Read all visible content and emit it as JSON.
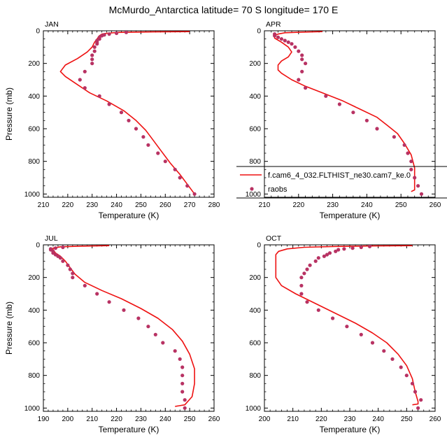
{
  "figure_title": "McMurdo_Antarctica  latitude= 70 S longitude= 170 E",
  "colors": {
    "model": "#ee1111",
    "obs": "#b83263"
  },
  "legend": {
    "model_label": "f.cam6_4_032.FLTHIST_ne30.cam7_ke.0",
    "obs_label": "raobs"
  },
  "chart_data": [
    {
      "type": "line",
      "title": "JAN",
      "xlabel": "Temperature (K)",
      "ylabel": "Pressure (mb)",
      "xlim": [
        210,
        280
      ],
      "ylim": [
        1020,
        0
      ],
      "y_inverted": true,
      "xticks": [
        210,
        220,
        230,
        240,
        250,
        260,
        270,
        280
      ],
      "yticks": [
        0,
        200,
        400,
        600,
        800,
        1000
      ],
      "series": [
        {
          "kind": "line",
          "points": [
            [
              270,
              5
            ],
            [
              255,
              7
            ],
            [
              241,
              10
            ],
            [
              236,
              15
            ],
            [
              234,
              20
            ],
            [
              233,
              30
            ],
            [
              232,
              50
            ],
            [
              231,
              70
            ],
            [
              230,
              100
            ],
            [
              228,
              130
            ],
            [
              224,
              170
            ],
            [
              219,
              210
            ],
            [
              217,
              250
            ],
            [
              219,
              280
            ],
            [
              223,
              320
            ],
            [
              229,
              380
            ],
            [
              236,
              430
            ],
            [
              243,
              490
            ],
            [
              248,
              550
            ],
            [
              252,
              610
            ],
            [
              255,
              670
            ],
            [
              258,
              730
            ],
            [
              262,
              810
            ],
            [
              266,
              880
            ],
            [
              269,
              940
            ],
            [
              272,
              1000
            ]
          ]
        },
        {
          "kind": "scatter",
          "points": [
            [
              244,
              10
            ],
            [
              240,
              15
            ],
            [
              237,
              20
            ],
            [
              235,
              25
            ],
            [
              234,
              30
            ],
            [
              233,
              40
            ],
            [
              233,
              50
            ],
            [
              232,
              60
            ],
            [
              232,
              70
            ],
            [
              232,
              80
            ],
            [
              231,
              100
            ],
            [
              231,
              125
            ],
            [
              230,
              150
            ],
            [
              230,
              175
            ],
            [
              230,
              200
            ],
            [
              227,
              250
            ],
            [
              225,
              300
            ],
            [
              227,
              350
            ],
            [
              233,
              400
            ],
            [
              237,
              450
            ],
            [
              242,
              500
            ],
            [
              245,
              550
            ],
            [
              248,
              600
            ],
            [
              251,
              650
            ],
            [
              253,
              700
            ],
            [
              257,
              750
            ],
            [
              260,
              800
            ],
            [
              264,
              850
            ],
            [
              266,
              900
            ],
            [
              269,
              950
            ],
            [
              272,
              1000
            ]
          ]
        }
      ]
    },
    {
      "type": "line",
      "title": "APR",
      "xlabel": "Temperature (K)",
      "ylabel": "",
      "xlim": [
        210,
        260
      ],
      "ylim": [
        1020,
        0
      ],
      "y_inverted": true,
      "xticks": [
        210,
        220,
        230,
        240,
        250,
        260
      ],
      "yticks": [
        0,
        200,
        400,
        600,
        800,
        1000
      ],
      "series": [
        {
          "kind": "line",
          "points": [
            [
              227,
              5
            ],
            [
              221,
              8
            ],
            [
              216,
              12
            ],
            [
              214,
              20
            ],
            [
              213,
              30
            ],
            [
              213,
              45
            ],
            [
              215,
              70
            ],
            [
              217,
              100
            ],
            [
              218,
              130
            ],
            [
              217,
              160
            ],
            [
              215,
              185
            ],
            [
              214,
              210
            ],
            [
              214,
              240
            ],
            [
              215,
              260
            ],
            [
              218,
              300
            ],
            [
              222,
              340
            ],
            [
              227,
              380
            ],
            [
              233,
              430
            ],
            [
              238,
              480
            ],
            [
              243,
              530
            ],
            [
              246,
              580
            ],
            [
              249,
              630
            ],
            [
              251,
              690
            ],
            [
              253,
              760
            ],
            [
              254,
              840
            ],
            [
              254,
              920
            ],
            [
              254,
              975
            ],
            [
              253,
              985
            ]
          ]
        },
        {
          "kind": "scatter",
          "points": [
            [
              213,
              20
            ],
            [
              213,
              30
            ],
            [
              214,
              40
            ],
            [
              215,
              50
            ],
            [
              216,
              60
            ],
            [
              217,
              70
            ],
            [
              218,
              80
            ],
            [
              219,
              100
            ],
            [
              220,
              125
            ],
            [
              221,
              150
            ],
            [
              221,
              175
            ],
            [
              222,
              200
            ],
            [
              221,
              250
            ],
            [
              220,
              300
            ],
            [
              222,
              350
            ],
            [
              228,
              400
            ],
            [
              232,
              450
            ],
            [
              236,
              500
            ],
            [
              240,
              550
            ],
            [
              243,
              600
            ],
            [
              248,
              650
            ],
            [
              251,
              700
            ],
            [
              252,
              750
            ],
            [
              253,
              800
            ],
            [
              253,
              850
            ],
            [
              254,
              900
            ],
            [
              255,
              950
            ],
            [
              256,
              1000
            ]
          ]
        }
      ]
    },
    {
      "type": "line",
      "title": "JUL",
      "xlabel": "Temperature (K)",
      "ylabel": "Pressure (mb)",
      "xlim": [
        190,
        260
      ],
      "ylim": [
        1020,
        0
      ],
      "y_inverted": true,
      "xticks": [
        190,
        200,
        210,
        220,
        230,
        240,
        250,
        260
      ],
      "yticks": [
        0,
        200,
        400,
        600,
        800,
        1000
      ],
      "series": [
        {
          "kind": "line",
          "points": [
            [
              217,
              5
            ],
            [
              205,
              8
            ],
            [
              197,
              12
            ],
            [
              194,
              20
            ],
            [
              194,
              30
            ],
            [
              195,
              50
            ],
            [
              197,
              70
            ],
            [
              199,
              100
            ],
            [
              201,
              140
            ],
            [
              203,
              180
            ],
            [
              207,
              230
            ],
            [
              214,
              280
            ],
            [
              222,
              330
            ],
            [
              230,
              390
            ],
            [
              237,
              450
            ],
            [
              243,
              520
            ],
            [
              247,
              590
            ],
            [
              250,
              670
            ],
            [
              252,
              760
            ],
            [
              252,
              850
            ],
            [
              251,
              930
            ],
            [
              248,
              980
            ],
            [
              244,
              990
            ]
          ]
        },
        {
          "kind": "scatter",
          "points": [
            [
              198,
              15
            ],
            [
              195,
              20
            ],
            [
              193,
              25
            ],
            [
              193,
              30
            ],
            [
              194,
              40
            ],
            [
              194,
              50
            ],
            [
              195,
              60
            ],
            [
              196,
              70
            ],
            [
              197,
              80
            ],
            [
              198,
              100
            ],
            [
              200,
              125
            ],
            [
              201,
              150
            ],
            [
              202,
              175
            ],
            [
              202,
              200
            ],
            [
              207,
              250
            ],
            [
              212,
              300
            ],
            [
              217,
              350
            ],
            [
              223,
              400
            ],
            [
              229,
              450
            ],
            [
              233,
              500
            ],
            [
              236,
              550
            ],
            [
              239,
              600
            ],
            [
              244,
              650
            ],
            [
              246,
              700
            ],
            [
              247,
              750
            ],
            [
              247,
              800
            ],
            [
              247,
              850
            ],
            [
              247,
              900
            ],
            [
              248,
              950
            ],
            [
              248,
              1000
            ]
          ]
        }
      ]
    },
    {
      "type": "line",
      "title": "OCT",
      "xlabel": "Temperature (K)",
      "ylabel": "",
      "xlim": [
        200,
        260
      ],
      "ylim": [
        1020,
        0
      ],
      "y_inverted": true,
      "xticks": [
        200,
        210,
        220,
        230,
        240,
        250,
        260
      ],
      "yticks": [
        0,
        200,
        400,
        600,
        800,
        1000
      ],
      "series": [
        {
          "kind": "line",
          "points": [
            [
              252,
              5
            ],
            [
              238,
              7
            ],
            [
              225,
              10
            ],
            [
              214,
              15
            ],
            [
              208,
              25
            ],
            [
              205,
              40
            ],
            [
              204,
              60
            ],
            [
              204,
              90
            ],
            [
              204,
              140
            ],
            [
              204,
              200
            ],
            [
              206,
              250
            ],
            [
              211,
              300
            ],
            [
              218,
              360
            ],
            [
              225,
              420
            ],
            [
              232,
              480
            ],
            [
              238,
              540
            ],
            [
              243,
              600
            ],
            [
              247,
              670
            ],
            [
              250,
              740
            ],
            [
              252,
              820
            ],
            [
              253,
              900
            ],
            [
              254,
              960
            ],
            [
              254,
              975
            ],
            [
              252,
              980
            ]
          ]
        },
        {
          "kind": "scatter",
          "points": [
            [
              237,
              10
            ],
            [
              234,
              15
            ],
            [
              231,
              20
            ],
            [
              228,
              25
            ],
            [
              226,
              30
            ],
            [
              225,
              40
            ],
            [
              223,
              50
            ],
            [
              222,
              60
            ],
            [
              221,
              70
            ],
            [
              219,
              80
            ],
            [
              218,
              100
            ],
            [
              216,
              125
            ],
            [
              215,
              150
            ],
            [
              214,
              175
            ],
            [
              213,
              200
            ],
            [
              213,
              250
            ],
            [
              213,
              300
            ],
            [
              215,
              350
            ],
            [
              219,
              400
            ],
            [
              224,
              450
            ],
            [
              229,
              500
            ],
            [
              234,
              550
            ],
            [
              238,
              600
            ],
            [
              242,
              650
            ],
            [
              245,
              700
            ],
            [
              248,
              750
            ],
            [
              250,
              800
            ],
            [
              252,
              850
            ],
            [
              253,
              900
            ],
            [
              255,
              950
            ],
            [
              254,
              1000
            ]
          ]
        }
      ]
    }
  ]
}
